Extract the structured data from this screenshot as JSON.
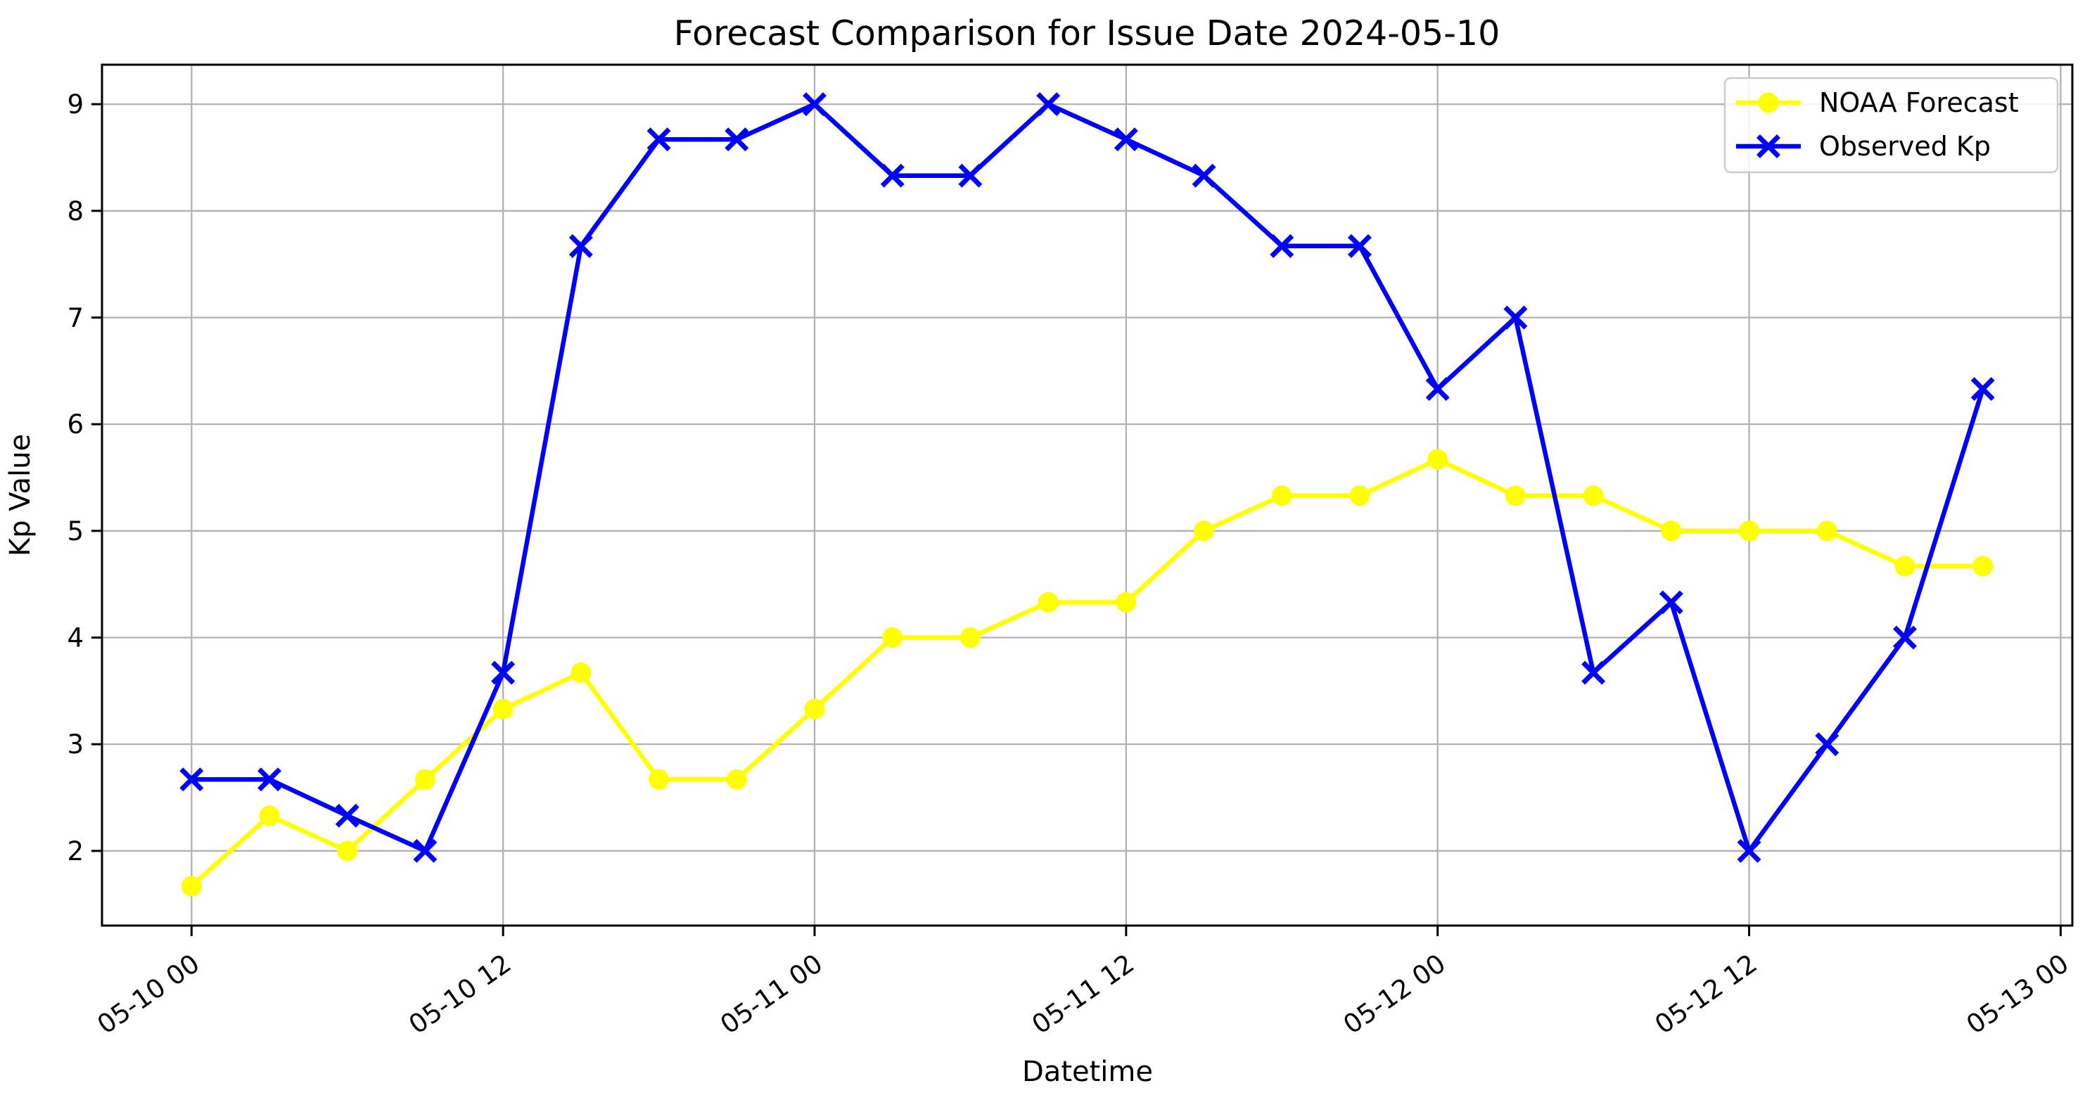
{
  "figure": {
    "kind": "matplotlib-line-chart"
  },
  "chart_data": {
    "type": "line",
    "title": "Forecast Comparison for Issue Date 2024-05-10",
    "xlabel": "Datetime",
    "ylabel": "Kp Value",
    "grid": true,
    "legend_position": "upper right",
    "background_color": "#ffffff",
    "grid_color": "#b2b2b2",
    "spine_color": "#000000",
    "text_color": "#000000",
    "categories": [
      "05-10 00",
      "05-10 03",
      "05-10 06",
      "05-10 09",
      "05-10 12",
      "05-10 15",
      "05-10 18",
      "05-10 21",
      "05-11 00",
      "05-11 03",
      "05-11 06",
      "05-11 09",
      "05-11 12",
      "05-11 15",
      "05-11 18",
      "05-11 21",
      "05-12 00",
      "05-12 03",
      "05-12 06",
      "05-12 09",
      "05-12 12",
      "05-12 15",
      "05-12 18",
      "05-12 21"
    ],
    "x_hours": [
      0,
      3,
      6,
      9,
      12,
      15,
      18,
      21,
      24,
      27,
      30,
      33,
      36,
      39,
      42,
      45,
      48,
      51,
      54,
      57,
      60,
      63,
      66,
      69
    ],
    "series": [
      {
        "name": "NOAA Forecast",
        "color": "#ffff00",
        "marker": "circle",
        "values": [
          1.67,
          2.33,
          2.0,
          2.67,
          3.33,
          3.67,
          2.67,
          2.67,
          3.33,
          4.0,
          4.0,
          4.33,
          4.33,
          5.0,
          5.33,
          5.33,
          5.67,
          5.33,
          5.33,
          5.0,
          5.0,
          5.0,
          4.67,
          4.67
        ]
      },
      {
        "name": "Observed Kp",
        "color": "#0000ff",
        "marker": "x",
        "values": [
          2.67,
          2.67,
          2.33,
          2.0,
          3.67,
          7.67,
          8.67,
          8.67,
          9.0,
          8.33,
          8.33,
          9.0,
          8.67,
          8.33,
          7.67,
          7.67,
          6.33,
          7.0,
          3.67,
          4.33,
          2.0,
          3.0,
          4.0,
          6.33
        ]
      }
    ],
    "xticks": {
      "hours": [
        0,
        12,
        24,
        36,
        48,
        60,
        72
      ],
      "labels": [
        "05-10 00",
        "05-10 12",
        "05-11 00",
        "05-11 12",
        "05-12 00",
        "05-12 12",
        "05-13 00"
      ]
    },
    "yticks": [
      2,
      3,
      4,
      5,
      6,
      7,
      8,
      9
    ],
    "xlim_hours": [
      -3.45,
      72.45
    ],
    "ylim": [
      1.3,
      9.37
    ]
  }
}
